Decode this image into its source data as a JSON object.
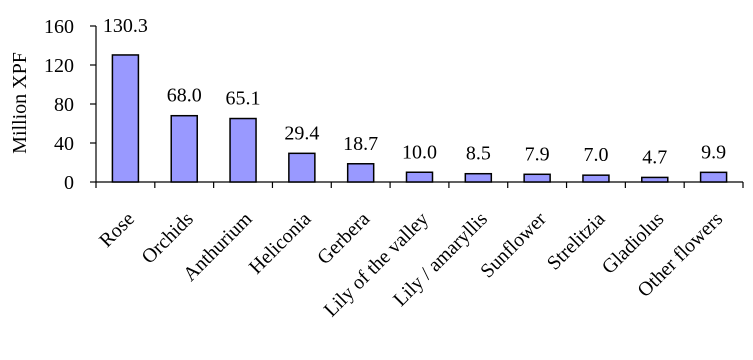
{
  "chart_data": {
    "type": "bar",
    "title": "",
    "xlabel": "",
    "ylabel": "Million  XPF",
    "ylim": [
      0,
      160
    ],
    "yticks": [
      0,
      40,
      80,
      120,
      160
    ],
    "grid": false,
    "legend": "none",
    "bar_color": "#9999ff",
    "categories": [
      "Rose",
      "Orchids",
      "Anthurium",
      "Heliconia",
      "Gerbera",
      "Lily of the valley",
      "Lily / amaryllis",
      "Sunflower",
      "Strelitzia",
      "Gladiolus",
      "Other flowers"
    ],
    "values": [
      130.3,
      68.0,
      65.1,
      29.4,
      18.7,
      10.0,
      8.5,
      7.9,
      7.0,
      4.7,
      9.9
    ],
    "data_labels": [
      "130.3",
      "68.0",
      "65.1",
      "29.4",
      "18.7",
      "10.0",
      "8.5",
      "7.9",
      "7.0",
      "4.7",
      "9.9"
    ]
  }
}
